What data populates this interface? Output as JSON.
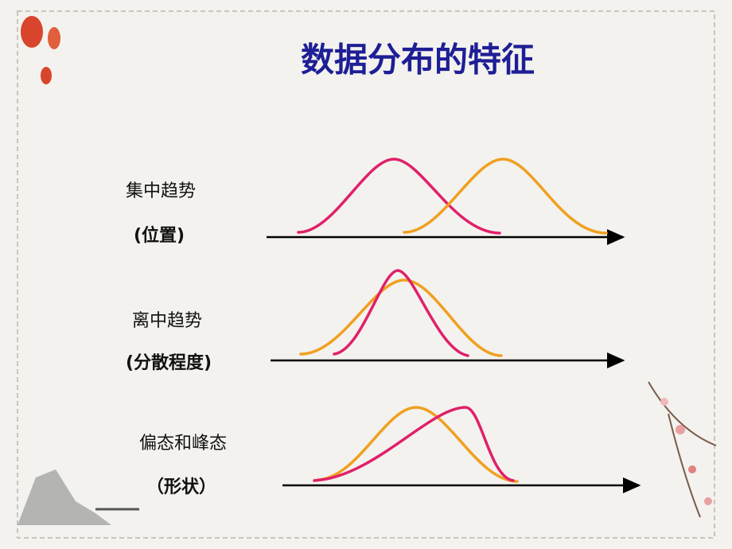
{
  "title": "数据分布的特征",
  "rows": [
    {
      "label": "集中趋势",
      "sub": "(位置)"
    },
    {
      "label": "离中趋势",
      "sub": "(分散程度)"
    },
    {
      "label": "偏态和峰态",
      "sub": "（形状）"
    }
  ]
}
